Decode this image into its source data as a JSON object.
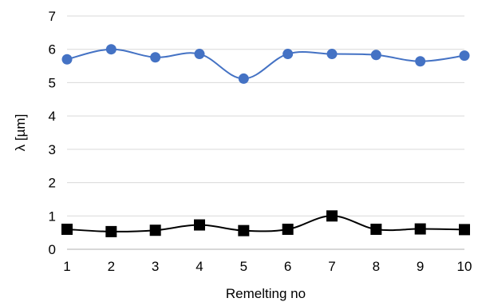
{
  "chart_data": {
    "type": "line",
    "title": "",
    "xlabel": "Remelting no",
    "ylabel": "λ [µm]",
    "x": [
      1,
      2,
      3,
      4,
      5,
      6,
      7,
      8,
      9,
      10
    ],
    "xticks": [
      "1",
      "2",
      "3",
      "4",
      "5",
      "6",
      "7",
      "8",
      "9",
      "10"
    ],
    "yticks": [
      "0",
      "1",
      "2",
      "3",
      "4",
      "5",
      "6",
      "7"
    ],
    "ylim": [
      0,
      7
    ],
    "xlim": [
      1,
      10
    ],
    "grid": "horizontal major gridlines only",
    "legend": "none",
    "series": [
      {
        "values": [
          5.7,
          6.0,
          5.76,
          5.86,
          5.12,
          5.86,
          5.86,
          5.83,
          5.64,
          5.81
        ],
        "color": "#4472C4",
        "marker": "circle",
        "smooth": true
      },
      {
        "values": [
          0.6,
          0.53,
          0.57,
          0.73,
          0.56,
          0.6,
          1.0,
          0.6,
          0.61,
          0.59
        ],
        "color": "#000000",
        "marker": "square",
        "smooth": true
      }
    ]
  }
}
